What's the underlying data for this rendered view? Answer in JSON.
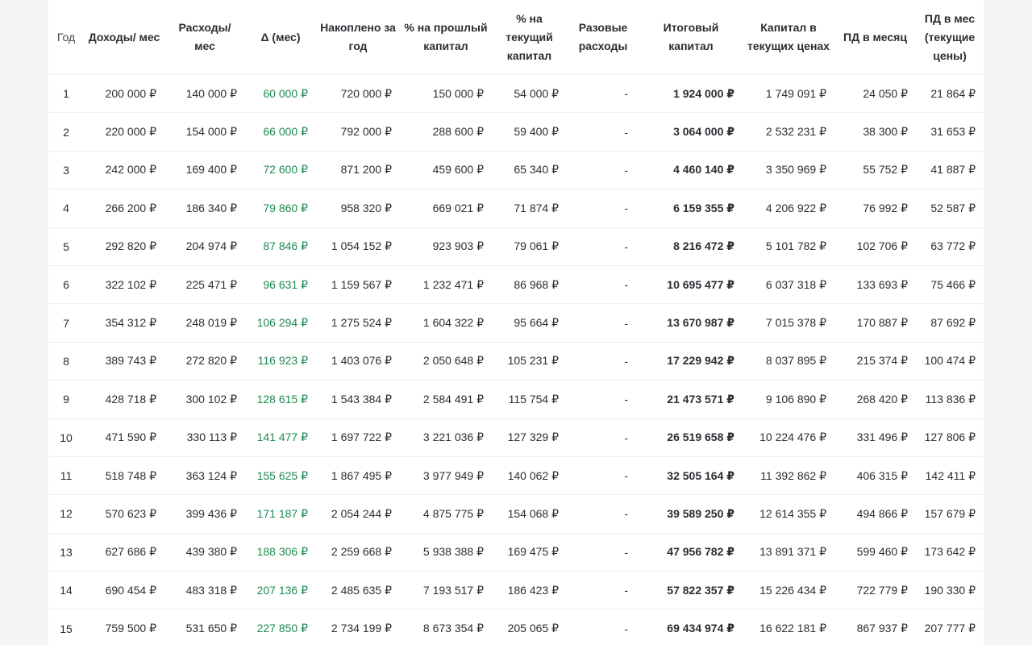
{
  "columns": [
    "Год",
    "Доходы/ мес",
    "Расходы/ мес",
    "Δ (мес)",
    "Накоплено за год",
    "% на прошлый капитал",
    "% на текущий капитал",
    "Разовые расходы",
    "Итоговый капитал",
    "Капитал в текущих ценах",
    "ПД в месяц",
    "ПД в мес (текущие цены)"
  ],
  "rows": [
    [
      "1",
      "200 000 ₽",
      "140 000 ₽",
      "60 000 ₽",
      "720 000 ₽",
      "150 000 ₽",
      "54 000 ₽",
      "-",
      "1 924 000 ₽",
      "1 749 091 ₽",
      "24 050 ₽",
      "21 864 ₽"
    ],
    [
      "2",
      "220 000 ₽",
      "154 000 ₽",
      "66 000 ₽",
      "792 000 ₽",
      "288 600 ₽",
      "59 400 ₽",
      "-",
      "3 064 000 ₽",
      "2 532 231 ₽",
      "38 300 ₽",
      "31 653 ₽"
    ],
    [
      "3",
      "242 000 ₽",
      "169 400 ₽",
      "72 600 ₽",
      "871 200 ₽",
      "459 600 ₽",
      "65 340 ₽",
      "-",
      "4 460 140 ₽",
      "3 350 969 ₽",
      "55 752 ₽",
      "41 887 ₽"
    ],
    [
      "4",
      "266 200 ₽",
      "186 340 ₽",
      "79 860 ₽",
      "958 320 ₽",
      "669 021 ₽",
      "71 874 ₽",
      "-",
      "6 159 355 ₽",
      "4 206 922 ₽",
      "76 992 ₽",
      "52 587 ₽"
    ],
    [
      "5",
      "292 820 ₽",
      "204 974 ₽",
      "87 846 ₽",
      "1 054 152 ₽",
      "923 903 ₽",
      "79 061 ₽",
      "-",
      "8 216 472 ₽",
      "5 101 782 ₽",
      "102 706 ₽",
      "63 772 ₽"
    ],
    [
      "6",
      "322 102 ₽",
      "225 471 ₽",
      "96 631 ₽",
      "1 159 567 ₽",
      "1 232 471 ₽",
      "86 968 ₽",
      "-",
      "10 695 477 ₽",
      "6 037 318 ₽",
      "133 693 ₽",
      "75 466 ₽"
    ],
    [
      "7",
      "354 312 ₽",
      "248 019 ₽",
      "106 294 ₽",
      "1 275 524 ₽",
      "1 604 322 ₽",
      "95 664 ₽",
      "-",
      "13 670 987 ₽",
      "7 015 378 ₽",
      "170 887 ₽",
      "87 692 ₽"
    ],
    [
      "8",
      "389 743 ₽",
      "272 820 ₽",
      "116 923 ₽",
      "1 403 076 ₽",
      "2 050 648 ₽",
      "105 231 ₽",
      "-",
      "17 229 942 ₽",
      "8 037 895 ₽",
      "215 374 ₽",
      "100 474 ₽"
    ],
    [
      "9",
      "428 718 ₽",
      "300 102 ₽",
      "128 615 ₽",
      "1 543 384 ₽",
      "2 584 491 ₽",
      "115 754 ₽",
      "-",
      "21 473 571 ₽",
      "9 106 890 ₽",
      "268 420 ₽",
      "113 836 ₽"
    ],
    [
      "10",
      "471 590 ₽",
      "330 113 ₽",
      "141 477 ₽",
      "1 697 722 ₽",
      "3 221 036 ₽",
      "127 329 ₽",
      "-",
      "26 519 658 ₽",
      "10 224 476 ₽",
      "331 496 ₽",
      "127 806 ₽"
    ],
    [
      "11",
      "518 748 ₽",
      "363 124 ₽",
      "155 625 ₽",
      "1 867 495 ₽",
      "3 977 949 ₽",
      "140 062 ₽",
      "-",
      "32 505 164 ₽",
      "11 392 862 ₽",
      "406 315 ₽",
      "142 411 ₽"
    ],
    [
      "12",
      "570 623 ₽",
      "399 436 ₽",
      "171 187 ₽",
      "2 054 244 ₽",
      "4 875 775 ₽",
      "154 068 ₽",
      "-",
      "39 589 250 ₽",
      "12 614 355 ₽",
      "494 866 ₽",
      "157 679 ₽"
    ],
    [
      "13",
      "627 686 ₽",
      "439 380 ₽",
      "188 306 ₽",
      "2 259 668 ₽",
      "5 938 388 ₽",
      "169 475 ₽",
      "-",
      "47 956 782 ₽",
      "13 891 371 ₽",
      "599 460 ₽",
      "173 642 ₽"
    ],
    [
      "14",
      "690 454 ₽",
      "483 318 ₽",
      "207 136 ₽",
      "2 485 635 ₽",
      "7 193 517 ₽",
      "186 423 ₽",
      "-",
      "57 822 357 ₽",
      "15 226 434 ₽",
      "722 779 ₽",
      "190 330 ₽"
    ],
    [
      "15",
      "759 500 ₽",
      "531 650 ₽",
      "227 850 ₽",
      "2 734 199 ₽",
      "8 673 354 ₽",
      "205 065 ₽",
      "-",
      "69 434 974 ₽",
      "16 622 181 ₽",
      "867 937 ₽",
      "207 777 ₽"
    ]
  ],
  "colors": {
    "delta_positive": "#1e8a52",
    "text": "#2b2d33",
    "divider": "#eceef1"
  }
}
